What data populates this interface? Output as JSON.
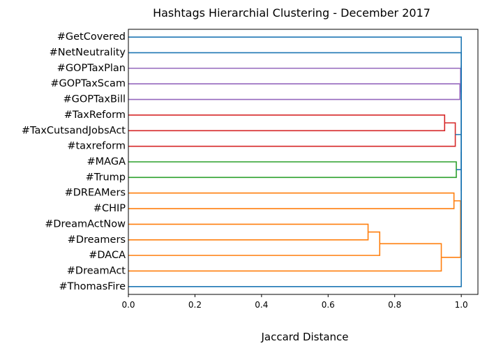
{
  "chart_data": {
    "type": "dendrogram",
    "orientation": "left",
    "title": "Hashtags Hierarchial Clustering - December 2017",
    "xlabel": "Jaccard Distance",
    "xlim": [
      0,
      1.05
    ],
    "xticks": [
      0.0,
      0.2,
      0.4,
      0.6,
      0.8,
      1.0
    ],
    "xtick_labels": [
      "0.0",
      "0.2",
      "0.4",
      "0.6",
      "0.8",
      "1.0"
    ],
    "grid": false,
    "leaves": [
      "#GetCovered",
      "#NetNeutrality",
      "#GOPTaxPlan",
      "#GOPTaxScam",
      "#GOPTaxBill",
      "#TaxReform",
      "#TaxCutsandJobsAct",
      "#taxreform",
      "#MAGA",
      "#Trump",
      "#DREAMers",
      "#CHIP",
      "#DreamActNow",
      "#Dreamers",
      "#DACA",
      "#DreamAct",
      "#ThomasFire"
    ],
    "colors": {
      "blue": "#1f77b4",
      "orange": "#ff7f0e",
      "green": "#2ca02c",
      "red": "#d62728",
      "purple": "#9467bd"
    },
    "links": [
      {
        "id": "c1",
        "left": "#DreamActNow",
        "right": "#Dreamers",
        "distance": 0.72,
        "color": "orange"
      },
      {
        "id": "c2",
        "left": "c1",
        "right": "#DACA",
        "distance": 0.755,
        "color": "orange"
      },
      {
        "id": "c3",
        "left": "c2",
        "right": "#DreamAct",
        "distance": 0.94,
        "color": "orange"
      },
      {
        "id": "c4",
        "left": "#DREAMers",
        "right": "#CHIP",
        "distance": 0.978,
        "color": "orange"
      },
      {
        "id": "c5",
        "left": "c4",
        "right": "c3",
        "distance": 0.998,
        "color": "orange"
      },
      {
        "id": "c6",
        "left": "#TaxReform",
        "right": "#TaxCutsandJobsAct",
        "distance": 0.95,
        "color": "red"
      },
      {
        "id": "c7",
        "left": "c6",
        "right": "#taxreform",
        "distance": 0.982,
        "color": "red"
      },
      {
        "id": "c8",
        "left": "#MAGA",
        "right": "#Trump",
        "distance": 0.985,
        "color": "green"
      },
      {
        "id": "c9",
        "left": "#GOPTaxScam",
        "right": "#GOPTaxBill",
        "distance": 0.996,
        "color": "purple"
      },
      {
        "id": "c10",
        "left": "#GOPTaxPlan",
        "right": "c9",
        "distance": 0.998,
        "color": "purple"
      },
      {
        "id": "c11",
        "left": "c7",
        "right": "c8",
        "distance": 1.0,
        "color": "blue"
      },
      {
        "id": "c12",
        "left": "c11",
        "right": "c5",
        "distance": 1.0,
        "color": "blue"
      },
      {
        "id": "c13",
        "left": "c10",
        "right": "c12",
        "distance": 1.0,
        "color": "blue"
      },
      {
        "id": "c14",
        "left": "#NetNeutrality",
        "right": "c13",
        "distance": 1.0,
        "color": "blue"
      },
      {
        "id": "c15",
        "left": "#GetCovered",
        "right": "c14",
        "distance": 1.0,
        "color": "blue"
      },
      {
        "id": "c16",
        "left": "c15",
        "right": "#ThomasFire",
        "distance": 1.0,
        "color": "blue"
      }
    ]
  }
}
